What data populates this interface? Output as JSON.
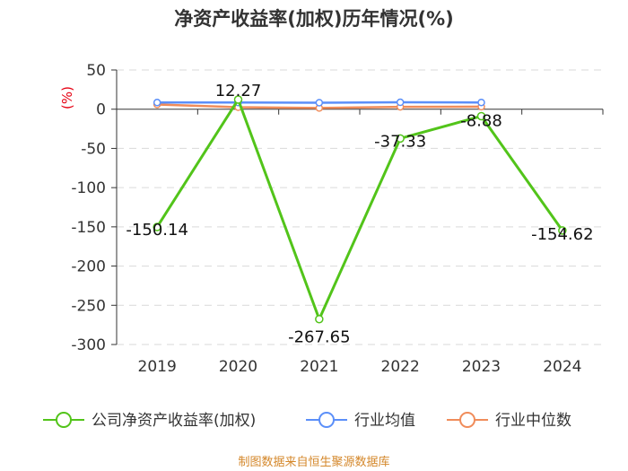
{
  "chart_data": {
    "type": "line",
    "title": "净资产收益率(加权)历年情况(%)",
    "ylabel": "(%)",
    "xlabel": "",
    "categories": [
      "2019",
      "2020",
      "2021",
      "2022",
      "2023",
      "2024"
    ],
    "ylim": [
      -300,
      50
    ],
    "yticks": [
      50,
      0,
      -50,
      -100,
      -150,
      -200,
      -250,
      -300
    ],
    "grid": true,
    "legend_position": "bottom",
    "series": [
      {
        "name": "公司净资产收益率(加权)",
        "color": "#52c41a",
        "values": [
          -150.14,
          12.27,
          -267.65,
          -37.33,
          -8.88,
          -154.62
        ],
        "labels": [
          "-150.14",
          "12.27",
          "-267.65",
          "-37.33",
          "-8.88",
          "-154.62"
        ]
      },
      {
        "name": "行业均值",
        "color": "#5b8ff9",
        "values": [
          8.5,
          8.5,
          8.3,
          8.8,
          8.6,
          null
        ]
      },
      {
        "name": "行业中位数",
        "color": "#f08c5a",
        "values": [
          6.0,
          2.5,
          1.5,
          3.0,
          3.2,
          null
        ]
      }
    ],
    "source": "制图数据来自恒生聚源数据库"
  }
}
